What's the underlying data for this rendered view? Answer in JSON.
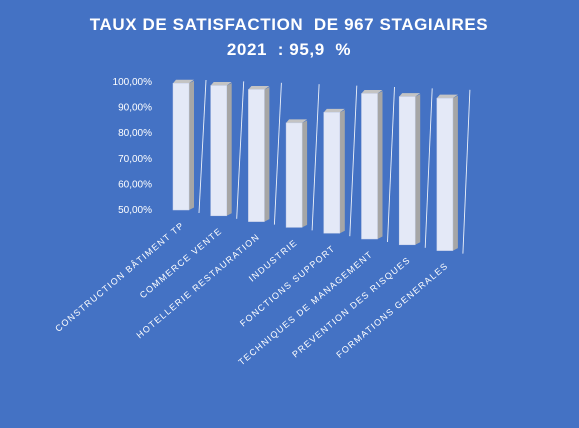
{
  "colors": {
    "background": "#4472c4",
    "bar_front": "#e4e9f7",
    "bar_side": "#a6a6a6",
    "bar_top": "#c4c4c4",
    "text": "#ffffff"
  },
  "chart_data": {
    "type": "bar",
    "title": "TAUX DE SATISFACTION  DE 967 STAGIAIRES",
    "subtitle": "2021  : 95,9  %",
    "xlabel": "",
    "ylabel": "",
    "ylim": [
      0.5,
      1.0
    ],
    "y_ticks": [
      "100,00%",
      "90,00%",
      "80,00%",
      "70,00%",
      "60,00%",
      "50,00%"
    ],
    "categories": [
      "CONSTRUCTION BÂTIMENT TP",
      "COMMERCE VENTE",
      "HOTELLERIE RESTAURATION",
      "INDUSTRIE",
      "FONCTIONS SUPPORT",
      "TECHNIQUES DE MANAGEMENT",
      "PREVENTION DES RISQUES",
      "FORMATIONS GENERALES"
    ],
    "values": [
      0.995,
      0.992,
      0.983,
      0.87,
      0.915,
      0.985,
      0.98,
      0.98
    ],
    "grid": false,
    "legend": "none",
    "style": "3d-perspective"
  }
}
